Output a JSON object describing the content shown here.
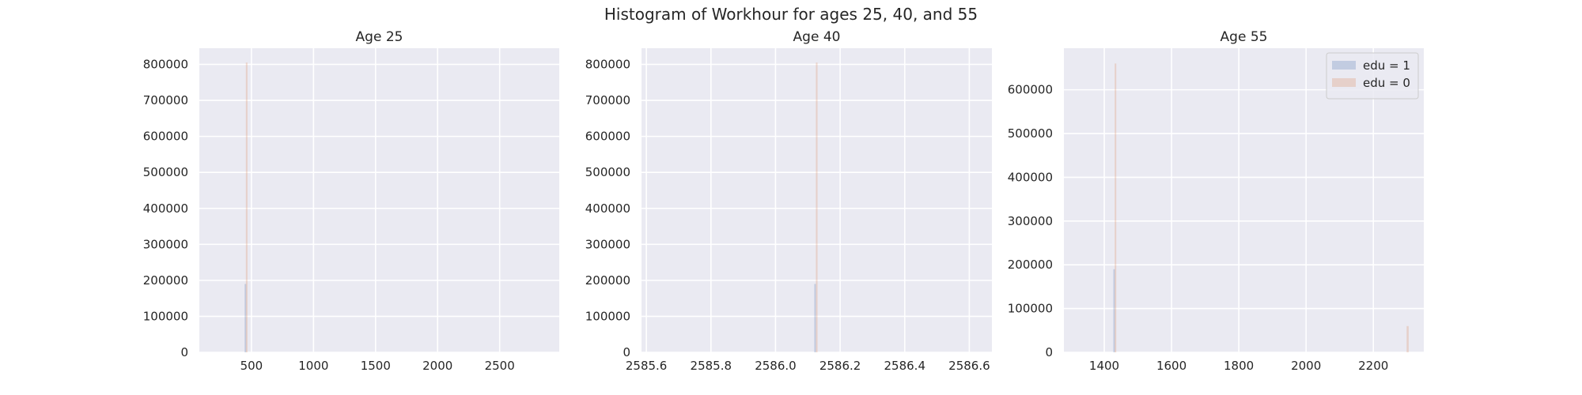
{
  "figure": {
    "title": "Histogram of Workhour for ages 25, 40, and 55"
  },
  "colors": {
    "background": "#EAEAF2",
    "grid": "#FFFFFF",
    "edu1": "#4C72B0",
    "edu0": "#DD8452",
    "text": "#262626"
  },
  "chart_data": [
    {
      "type": "bar",
      "title": "Age 25",
      "xlabel": "",
      "ylabel": "",
      "xlim": [
        80,
        2980
      ],
      "ylim": [
        0,
        845000
      ],
      "xticks": [
        500,
        1000,
        1500,
        2000,
        2500
      ],
      "xtick_labels": [
        "500",
        "1000",
        "1500",
        "2000",
        "2500"
      ],
      "yticks": [
        0,
        100000,
        200000,
        300000,
        400000,
        500000,
        600000,
        700000,
        800000
      ],
      "ytick_labels": [
        "0",
        "100000",
        "200000",
        "300000",
        "400000",
        "500000",
        "600000",
        "700000",
        "800000"
      ],
      "grid": true,
      "series": [
        {
          "legend": "edu = 1",
          "color_key": "edu1",
          "bins": [
            {
              "x0": 445,
              "x1": 455,
              "count": 190000
            }
          ]
        },
        {
          "legend": "edu = 0",
          "color_key": "edu0",
          "bins": [
            {
              "x0": 455,
              "x1": 468,
              "count": 805000
            }
          ]
        }
      ],
      "legend": null
    },
    {
      "type": "bar",
      "title": "Age 40",
      "xlabel": "",
      "ylabel": "",
      "xlim": [
        2585.585,
        2586.67
      ],
      "ylim": [
        0,
        845000
      ],
      "xticks": [
        2585.6,
        2585.8,
        2586.0,
        2586.2,
        2586.4,
        2586.6
      ],
      "xtick_labels": [
        "2585.6",
        "2585.8",
        "2586.0",
        "2586.2",
        "2586.4",
        "2586.6"
      ],
      "yticks": [
        0,
        100000,
        200000,
        300000,
        400000,
        500000,
        600000,
        700000,
        800000
      ],
      "ytick_labels": [
        "0",
        "100000",
        "200000",
        "300000",
        "400000",
        "500000",
        "600000",
        "700000",
        "800000"
      ],
      "grid": true,
      "series": [
        {
          "legend": "edu = 1",
          "color_key": "edu1",
          "bins": [
            {
              "x0": 2586.12,
              "x1": 2586.125,
              "count": 190000
            }
          ]
        },
        {
          "legend": "edu = 0",
          "color_key": "edu0",
          "bins": [
            {
              "x0": 2586.125,
              "x1": 2586.13,
              "count": 805000
            }
          ]
        }
      ],
      "legend": null
    },
    {
      "type": "bar",
      "title": "Age 55",
      "xlabel": "",
      "ylabel": "",
      "xlim": [
        1280,
        2350
      ],
      "ylim": [
        0,
        695000
      ],
      "xticks": [
        1400,
        1600,
        1800,
        2000,
        2200
      ],
      "xtick_labels": [
        "1400",
        "1600",
        "1800",
        "2000",
        "2200"
      ],
      "yticks": [
        0,
        100000,
        200000,
        300000,
        400000,
        500000,
        600000
      ],
      "ytick_labels": [
        "0",
        "100000",
        "200000",
        "300000",
        "400000",
        "500000",
        "600000"
      ],
      "grid": true,
      "series": [
        {
          "legend": "edu = 1",
          "color_key": "edu1",
          "bins": [
            {
              "x0": 1427,
              "x1": 1431,
              "count": 190000
            }
          ]
        },
        {
          "legend": "edu = 0",
          "color_key": "edu0",
          "bins": [
            {
              "x0": 1431,
              "x1": 1435,
              "count": 660000
            },
            {
              "x0": 2299,
              "x1": 2305,
              "count": 60000
            }
          ]
        }
      ],
      "legend": {
        "position": "upper right",
        "entries": [
          {
            "label": "edu = 1",
            "color_key": "edu1"
          },
          {
            "label": "edu = 0",
            "color_key": "edu0"
          }
        ]
      }
    }
  ]
}
